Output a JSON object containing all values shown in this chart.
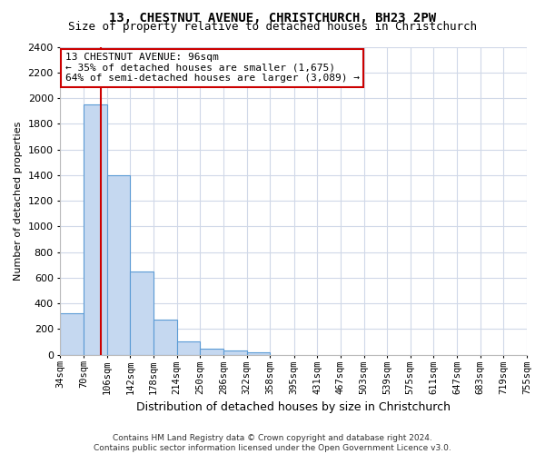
{
  "title": "13, CHESTNUT AVENUE, CHRISTCHURCH, BH23 2PW",
  "subtitle": "Size of property relative to detached houses in Christchurch",
  "xlabel": "Distribution of detached houses by size in Christchurch",
  "ylabel": "Number of detached properties",
  "bar_values": [
    325,
    1950,
    1400,
    650,
    275,
    105,
    50,
    35,
    20
  ],
  "bar_starts": [
    34,
    70,
    106,
    142,
    178,
    214,
    250,
    286,
    322
  ],
  "bar_ends": [
    70,
    106,
    142,
    178,
    214,
    250,
    286,
    322,
    358
  ],
  "bin_edges": [
    34,
    70,
    106,
    142,
    178,
    214,
    250,
    286,
    322,
    358,
    395,
    431,
    467,
    503,
    539,
    575,
    611,
    647,
    683,
    719,
    755
  ],
  "bar_color": "#c5d8f0",
  "bar_edge_color": "#5b9bd5",
  "vline_color": "#cc0000",
  "vline_x": 96,
  "annotation_text": "13 CHESTNUT AVENUE: 96sqm\n← 35% of detached houses are smaller (1,675)\n64% of semi-detached houses are larger (3,089) →",
  "annotation_box_color": "white",
  "annotation_box_edge": "#cc0000",
  "ylim": [
    0,
    2400
  ],
  "yticks": [
    0,
    200,
    400,
    600,
    800,
    1000,
    1200,
    1400,
    1600,
    1800,
    2000,
    2200,
    2400
  ],
  "xtick_labels": [
    "34sqm",
    "70sqm",
    "106sqm",
    "142sqm",
    "178sqm",
    "214sqm",
    "250sqm",
    "286sqm",
    "322sqm",
    "358sqm",
    "395sqm",
    "431sqm",
    "467sqm",
    "503sqm",
    "539sqm",
    "575sqm",
    "611sqm",
    "647sqm",
    "683sqm",
    "719sqm",
    "755sqm"
  ],
  "footer": "Contains HM Land Registry data © Crown copyright and database right 2024.\nContains public sector information licensed under the Open Government Licence v3.0.",
  "grid_color": "#d0d8e8",
  "bg_color": "white",
  "title_fontsize": 10,
  "subtitle_fontsize": 9,
  "ylabel_fontsize": 8,
  "xlabel_fontsize": 9,
  "tick_fontsize": 7.5,
  "footer_fontsize": 6.5,
  "ann_fontsize": 8
}
